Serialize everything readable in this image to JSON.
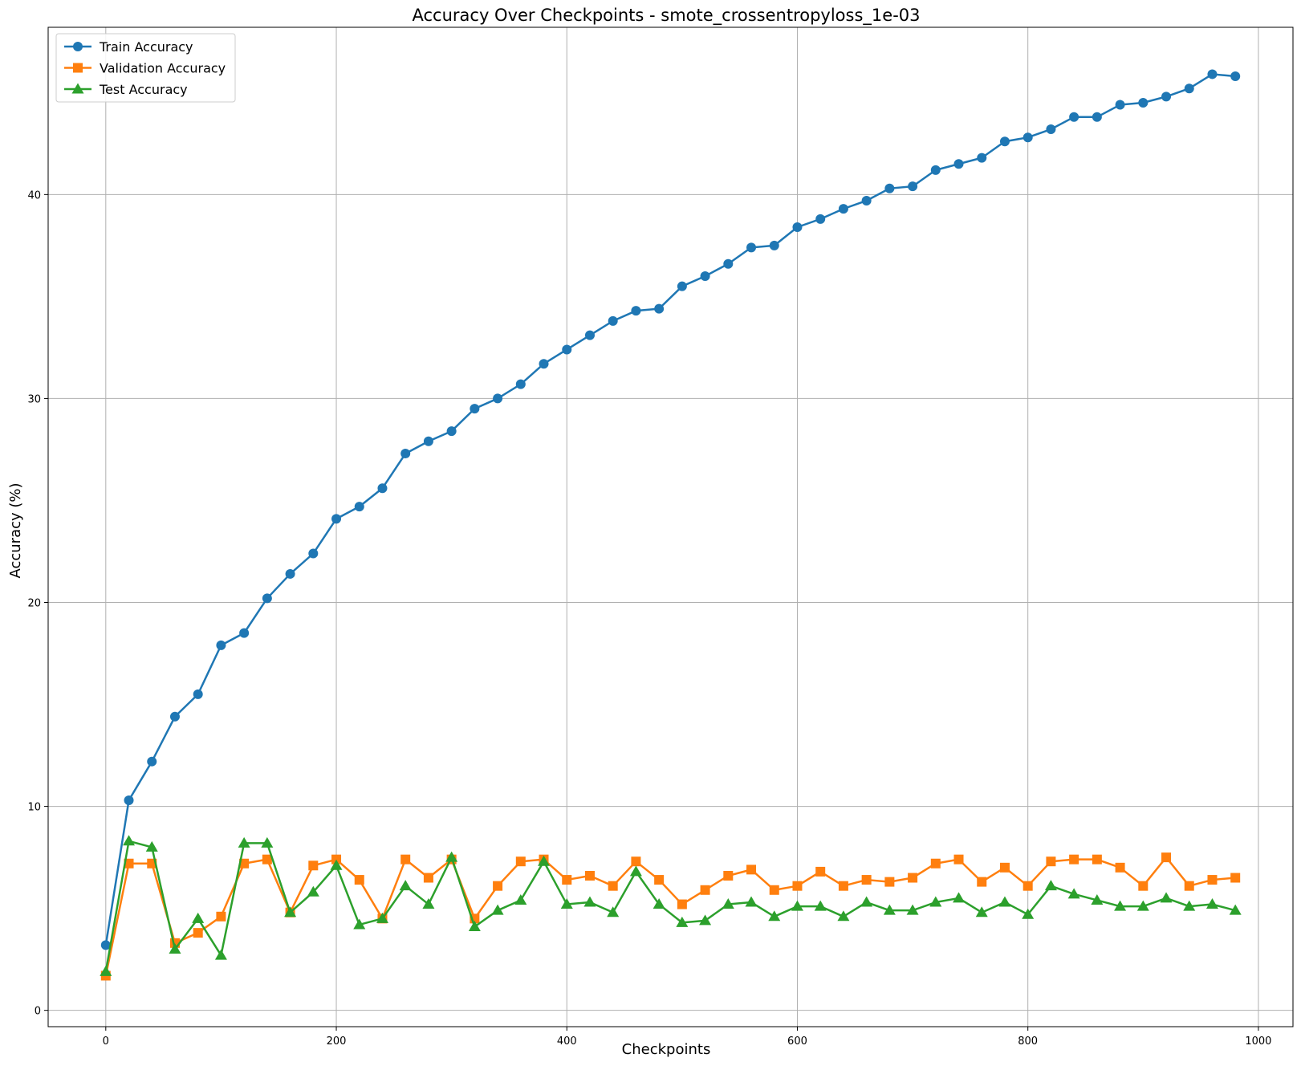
{
  "chart_data": {
    "type": "line",
    "title": "Accuracy Over Checkpoints - smote_crossentropyloss_1e-03",
    "xlabel": "Checkpoints",
    "ylabel": "Accuracy (%)",
    "xlim": [
      -50,
      1030
    ],
    "ylim": [
      -0.8,
      48.2
    ],
    "xticks": [
      0,
      200,
      400,
      600,
      800,
      1000
    ],
    "yticks": [
      0,
      10,
      20,
      30,
      40
    ],
    "grid": true,
    "legend": "upper-left",
    "x": [
      0,
      20,
      40,
      60,
      80,
      100,
      120,
      140,
      160,
      180,
      200,
      220,
      240,
      260,
      280,
      300,
      320,
      340,
      360,
      380,
      400,
      420,
      440,
      460,
      480,
      500,
      520,
      540,
      560,
      580,
      600,
      620,
      640,
      660,
      680,
      700,
      720,
      740,
      760,
      780,
      800,
      820,
      840,
      860,
      880,
      900,
      920,
      940,
      960,
      980
    ],
    "series": [
      {
        "name": "Train Accuracy",
        "color": "#1f77b4",
        "marker": "circle",
        "values": [
          3.2,
          10.3,
          12.2,
          14.4,
          15.5,
          17.9,
          18.5,
          20.2,
          21.4,
          22.4,
          24.1,
          24.7,
          25.6,
          27.3,
          27.9,
          28.4,
          29.5,
          30.0,
          30.7,
          31.7,
          32.4,
          33.1,
          33.8,
          34.3,
          34.4,
          35.5,
          36.0,
          36.6,
          37.4,
          37.5,
          38.4,
          38.8,
          39.3,
          39.7,
          40.3,
          40.4,
          41.2,
          41.5,
          41.8,
          42.6,
          42.8,
          43.2,
          43.8,
          43.8,
          44.4,
          44.5,
          44.8,
          45.2,
          45.9,
          45.8
        ]
      },
      {
        "name": "Validation Accuracy",
        "color": "#ff7f0e",
        "marker": "square",
        "values": [
          1.7,
          7.2,
          7.2,
          3.3,
          3.8,
          4.6,
          7.2,
          7.4,
          4.8,
          7.1,
          7.4,
          6.4,
          4.5,
          7.4,
          6.5,
          7.4,
          4.5,
          6.1,
          7.3,
          7.4,
          6.4,
          6.6,
          6.1,
          7.3,
          6.4,
          5.2,
          5.9,
          6.6,
          6.9,
          5.9,
          6.1,
          6.8,
          6.1,
          6.4,
          6.3,
          6.5,
          7.2,
          7.4,
          6.3,
          7.0,
          6.1,
          7.3,
          7.4,
          7.4,
          7.0,
          6.1,
          7.5,
          6.1,
          6.4,
          6.5
        ]
      },
      {
        "name": "Test Accuracy",
        "color": "#2ca02c",
        "marker": "triangle",
        "values": [
          1.9,
          8.3,
          8.0,
          3.0,
          4.5,
          2.7,
          8.2,
          8.2,
          4.8,
          5.8,
          7.1,
          4.2,
          4.5,
          6.1,
          5.2,
          7.5,
          4.1,
          4.9,
          5.4,
          7.3,
          5.2,
          5.3,
          4.8,
          6.8,
          5.2,
          4.3,
          4.4,
          5.2,
          5.3,
          4.6,
          5.1,
          5.1,
          4.6,
          5.3,
          4.9,
          4.9,
          5.3,
          5.5,
          4.8,
          5.3,
          4.7,
          6.1,
          5.7,
          5.4,
          5.1,
          5.1,
          5.5,
          5.1,
          5.2,
          4.9
        ]
      }
    ]
  }
}
